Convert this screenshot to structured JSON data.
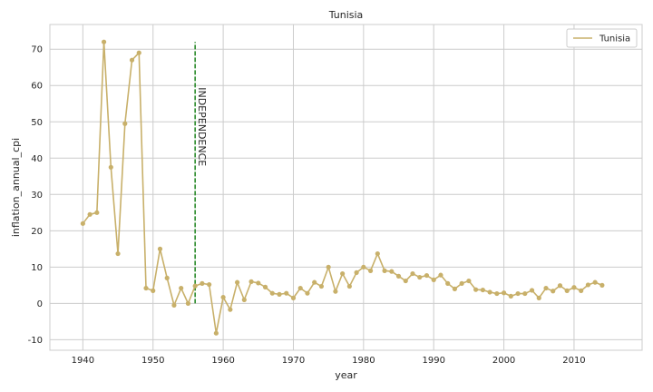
{
  "chart_data": {
    "type": "line",
    "title": "Tunisia",
    "xlabel": "year",
    "ylabel": "inflation_annual_cpi",
    "xlim": [
      1935.3,
      2019.7
    ],
    "ylim": [
      -12.9,
      76.8
    ],
    "xticks": [
      1940,
      1950,
      1960,
      1970,
      1980,
      1990,
      2000,
      2010
    ],
    "yticks": [
      -10,
      0,
      10,
      20,
      30,
      40,
      50,
      60,
      70
    ],
    "grid": true,
    "legend_position": "top-right",
    "series": [
      {
        "name": "Tunisia",
        "color": "#c8b06a",
        "x": [
          1940,
          1941,
          1942,
          1943,
          1944,
          1945,
          1946,
          1947,
          1948,
          1949,
          1950,
          1951,
          1952,
          1953,
          1954,
          1955,
          1956,
          1957,
          1958,
          1959,
          1960,
          1961,
          1962,
          1963,
          1964,
          1965,
          1966,
          1967,
          1968,
          1969,
          1970,
          1971,
          1972,
          1973,
          1974,
          1975,
          1976,
          1977,
          1978,
          1979,
          1980,
          1981,
          1982,
          1983,
          1984,
          1985,
          1986,
          1987,
          1988,
          1989,
          1990,
          1991,
          1992,
          1993,
          1994,
          1995,
          1996,
          1997,
          1998,
          1999,
          2000,
          2001,
          2002,
          2003,
          2004,
          2005,
          2006,
          2007,
          2008,
          2009,
          2010,
          2011,
          2012,
          2013,
          2014
        ],
        "y": [
          22.0,
          24.5,
          25.0,
          72.0,
          37.5,
          13.7,
          49.5,
          67.0,
          69.0,
          4.2,
          3.5,
          15.0,
          7.0,
          -0.5,
          4.2,
          0.0,
          4.8,
          5.5,
          5.2,
          -8.2,
          1.7,
          -1.7,
          5.8,
          1.0,
          6.0,
          5.6,
          4.5,
          2.8,
          2.5,
          2.8,
          1.5,
          4.2,
          2.8,
          5.8,
          4.7,
          10.0,
          3.3,
          8.2,
          4.7,
          8.5,
          10.0,
          9.0,
          13.7,
          9.0,
          8.8,
          7.5,
          6.2,
          8.2,
          7.2,
          7.7,
          6.5,
          7.8,
          5.5,
          4.0,
          5.5,
          6.2,
          3.8,
          3.7,
          3.1,
          2.7,
          2.9,
          2.0,
          2.7,
          2.7,
          3.6,
          1.5,
          4.2,
          3.4,
          4.9,
          3.5,
          4.4,
          3.5,
          5.1,
          5.8,
          5.0
        ]
      }
    ],
    "annotations": [
      {
        "text": "INDEPENDENCE",
        "x": 1956,
        "y_from": 0,
        "y_to": 72,
        "line_color": "#2a8a2a"
      }
    ]
  }
}
